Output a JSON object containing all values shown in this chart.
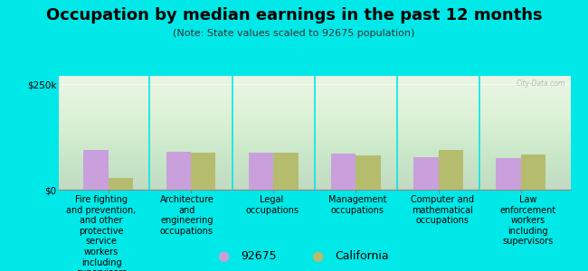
{
  "title": "Occupation by median earnings in the past 12 months",
  "subtitle": "(Note: State values scaled to 92675 population)",
  "categories": [
    "Fire fighting\nand prevention,\nand other\nprotective\nservice\nworkers\nincluding\nsupervisors",
    "Architecture\nand\nengineering\noccupations",
    "Legal\noccupations",
    "Management\noccupations",
    "Computer and\nmathematical\noccupations",
    "Law\nenforcement\nworkers\nincluding\nsupervisors"
  ],
  "values_92675": [
    95000,
    90000,
    88000,
    85000,
    78000,
    75000
  ],
  "values_california": [
    28000,
    88000,
    87000,
    82000,
    95000,
    83000
  ],
  "color_92675": "#c9a0dc",
  "color_california": "#b5bc6e",
  "background_color": "#00e8e8",
  "plot_bg_color": "#e6f5e0",
  "ylabel_250k": "$250k",
  "ylabel_0": "$0",
  "ylim": [
    0,
    270000
  ],
  "yticks": [
    0,
    250000
  ],
  "ytick_labels": [
    "$0",
    "$250k"
  ],
  "legend_92675": "92675",
  "legend_california": "California",
  "bar_width": 0.3,
  "title_fontsize": 13,
  "subtitle_fontsize": 8,
  "label_fontsize": 7,
  "tick_fontsize": 7.5,
  "legend_fontsize": 9
}
